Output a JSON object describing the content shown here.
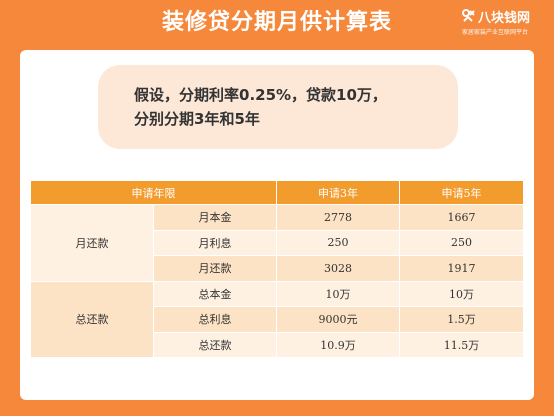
{
  "title": "装修贷分期月供计算表",
  "logo": {
    "name": "八块钱网",
    "slogan": "家居家装产业互联网平台"
  },
  "assumption": {
    "line1": "假设，分期利率0.25%，贷款10万，",
    "line2": "分别分期3年和5年"
  },
  "table": {
    "headers": {
      "term": "申请年限",
      "col3": "申请3年",
      "col5": "申请5年"
    },
    "groups": [
      {
        "label": "月还款",
        "rows": [
          {
            "item": "月本金",
            "y3": "2778",
            "y5": "1667"
          },
          {
            "item": "月利息",
            "y3": "250",
            "y5": "250"
          },
          {
            "item": "月还款",
            "y3": "3028",
            "y5": "1917"
          }
        ]
      },
      {
        "label": "总还款",
        "rows": [
          {
            "item": "总本金",
            "y3": "10万",
            "y5": "10万"
          },
          {
            "item": "总利息",
            "y3": "9000元",
            "y5": "1.5万"
          },
          {
            "item": "总还款",
            "y3": "10.9万",
            "y5": "11.5万"
          }
        ]
      }
    ]
  }
}
